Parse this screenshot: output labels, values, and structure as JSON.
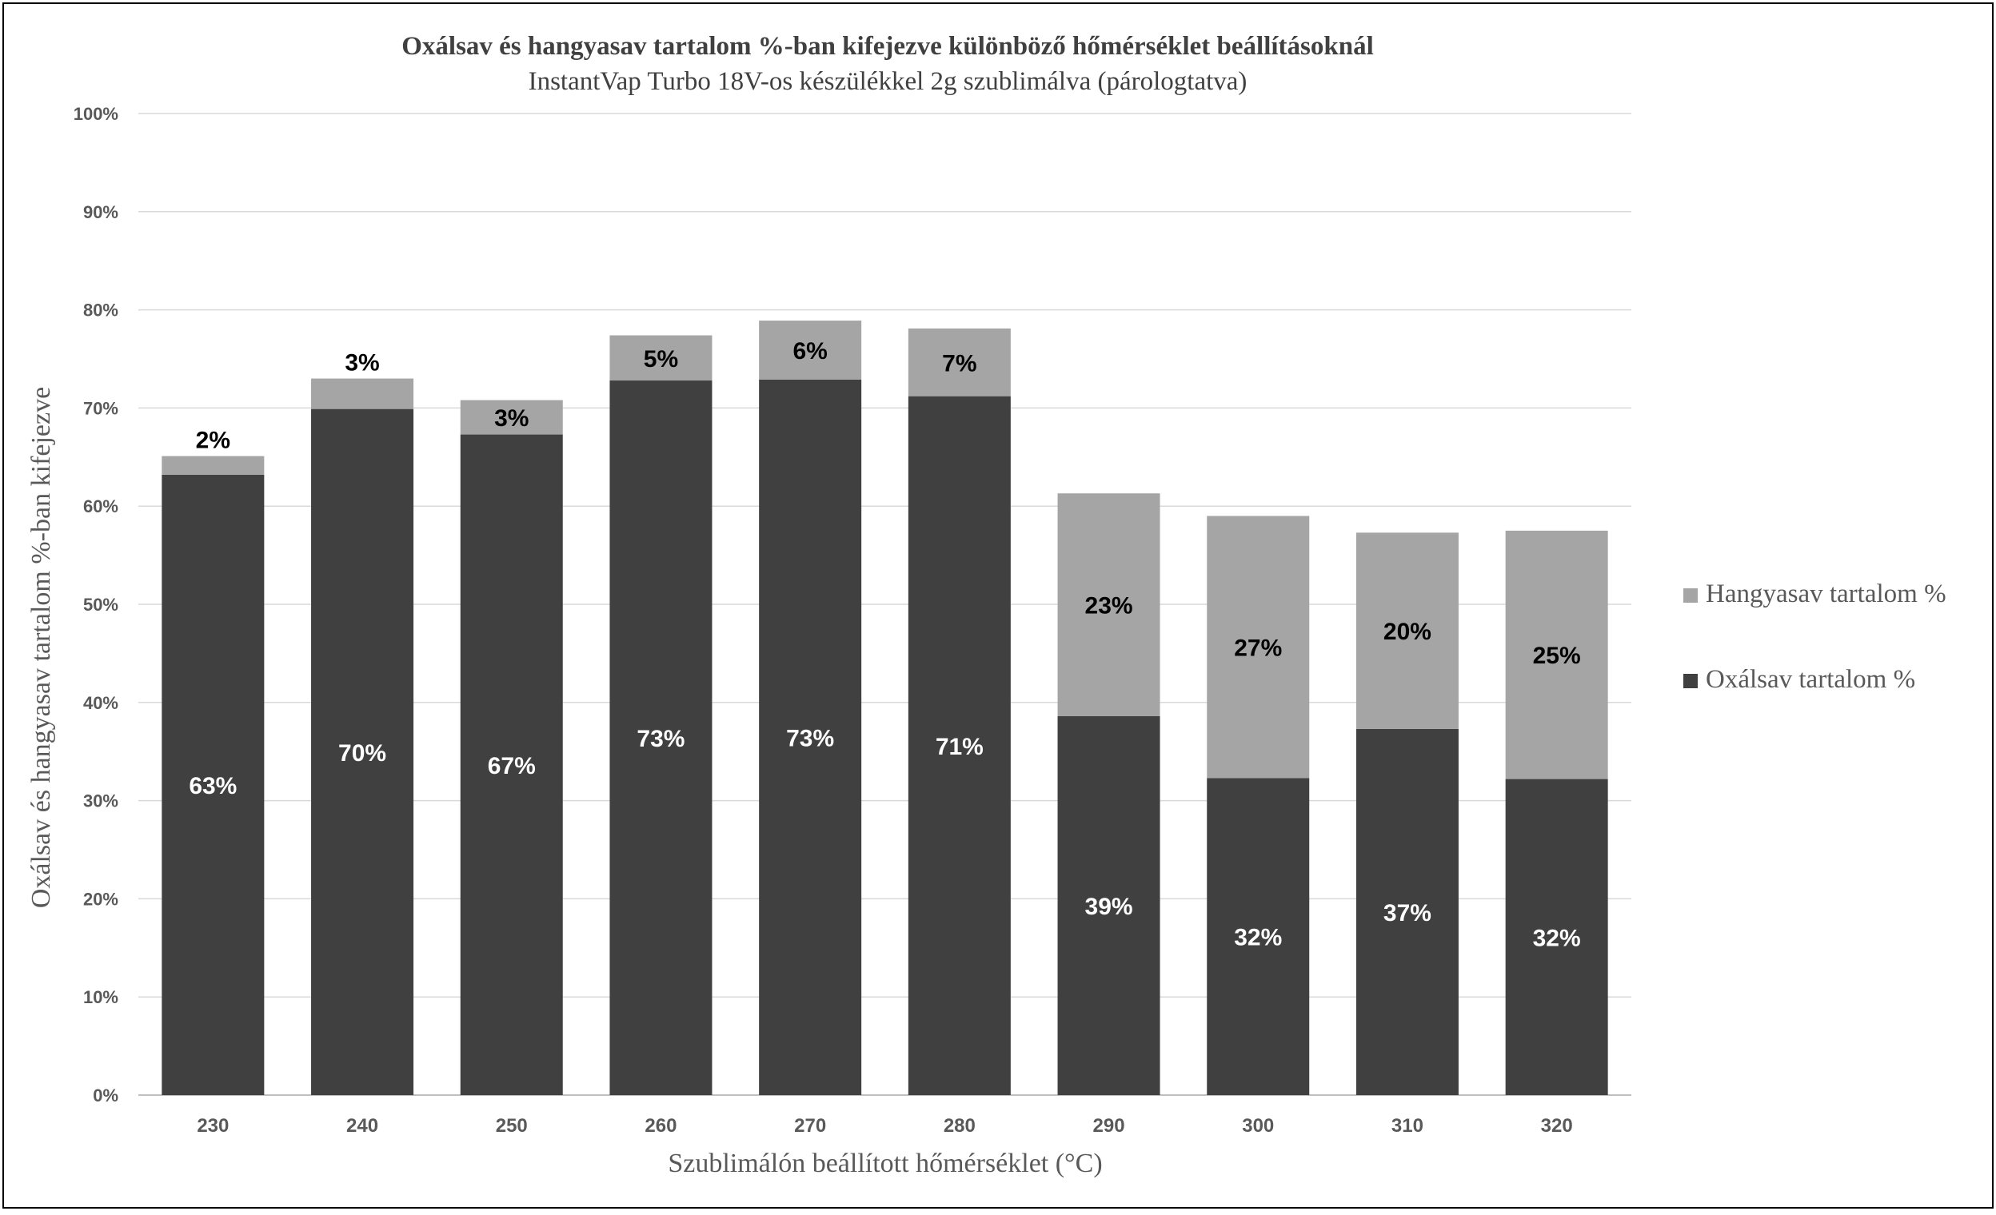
{
  "chart_data": {
    "type": "bar",
    "stacked": true,
    "title": "Oxálsav és hangyasav tartalom %-ban kifejezve különböző hőmérséklet beállításoknál",
    "subtitle": "InstantVap Turbo 18V-os készülékkel 2g szublimálva (párologtatva)",
    "xlabel": "Szublimálón beállított hőmérséklet (°C)",
    "ylabel": "Oxálsav és hangyasav tartalom %-ban kifejezve",
    "categories": [
      "230",
      "240",
      "250",
      "260",
      "270",
      "280",
      "290",
      "300",
      "310",
      "320"
    ],
    "ylim": [
      0,
      100
    ],
    "yticks": [
      "0%",
      "10%",
      "20%",
      "30%",
      "40%",
      "50%",
      "60%",
      "70%",
      "80%",
      "90%",
      "100%"
    ],
    "grid": true,
    "legend_position": "right",
    "series": [
      {
        "name": "Oxálsav tartalom %",
        "color": "#404040",
        "values": [
          63.2,
          69.9,
          67.3,
          72.8,
          72.9,
          71.2,
          38.6,
          32.3,
          37.3,
          32.2
        ],
        "labels": [
          "63%",
          "70%",
          "67%",
          "73%",
          "73%",
          "71%",
          "39%",
          "32%",
          "37%",
          "32%"
        ]
      },
      {
        "name": "Hangyasav tartalom %",
        "color": "#a5a5a5",
        "values": [
          1.9,
          3.1,
          3.5,
          4.6,
          6.0,
          6.9,
          22.7,
          26.7,
          20.0,
          25.3
        ],
        "labels": [
          "2%",
          "3%",
          "3%",
          "5%",
          "6%",
          "7%",
          "23%",
          "27%",
          "20%",
          "25%"
        ]
      }
    ]
  }
}
